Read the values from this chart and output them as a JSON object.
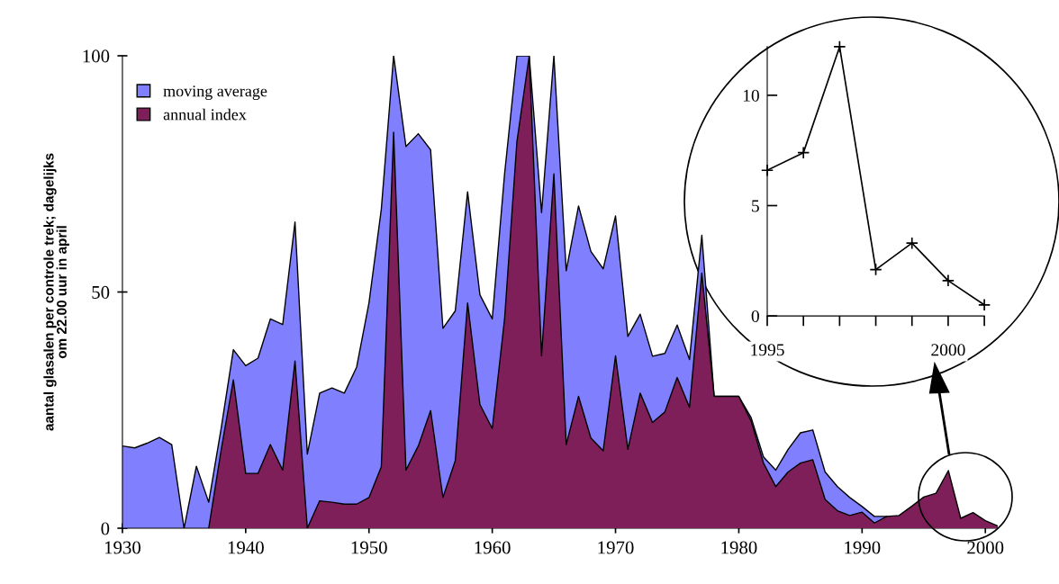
{
  "chart_data": [
    {
      "type": "area",
      "ylabel": "aantal glasalen per controle trek; dagelijks\nom 22.00 uur in april",
      "x": [
        1930,
        1931,
        1932,
        1933,
        1934,
        1935,
        1936,
        1937,
        1938,
        1939,
        1940,
        1941,
        1942,
        1943,
        1944,
        1945,
        1946,
        1947,
        1948,
        1949,
        1950,
        1951,
        1952,
        1953,
        1954,
        1955,
        1956,
        1957,
        1958,
        1959,
        1960,
        1961,
        1962,
        1963,
        1964,
        1965,
        1966,
        1967,
        1968,
        1969,
        1970,
        1971,
        1972,
        1973,
        1974,
        1975,
        1976,
        1977,
        1978,
        1979,
        1980,
        1981,
        1982,
        1983,
        1984,
        1985,
        1986,
        1987,
        1988,
        1989,
        1990,
        1991,
        1992,
        1993,
        1994,
        1995,
        1996,
        1997,
        1998,
        1999,
        2000,
        2001
      ],
      "xlim": [
        1930,
        2001
      ],
      "ylim": [
        0,
        100
      ],
      "xticks": [
        1930,
        1940,
        1950,
        1960,
        1970,
        1980,
        1990,
        2000
      ],
      "yticks": [
        0,
        50,
        100
      ],
      "legend": "top left",
      "series": [
        {
          "name": "moving average",
          "color": "#8080ff",
          "values": [
            17.4,
            17.0,
            18,
            19.2,
            17.7,
            0,
            13.1,
            5.5,
            21,
            37.8,
            34.4,
            36,
            44.3,
            43.1,
            64.8,
            15.7,
            28.6,
            29.7,
            28.6,
            34.1,
            47.7,
            67.5,
            100,
            80.8,
            83.5,
            80.1,
            42.3,
            46,
            71.2,
            49.4,
            44.3,
            75,
            100,
            100,
            66.8,
            100,
            54.5,
            68.2,
            58.6,
            54.9,
            66.1,
            40.6,
            45.3,
            36.4,
            37,
            43,
            35.7,
            62,
            27.9,
            27.9,
            27.9,
            23.4,
            15.1,
            12.3,
            16.7,
            20.2,
            20.8,
            11.9,
            8.8,
            6.5,
            4.6,
            2.5,
            2.5,
            null,
            null,
            null,
            null,
            null,
            null,
            null,
            null,
            null
          ]
        },
        {
          "name": "annual index",
          "color": "#7f1f5a",
          "values": [
            null,
            null,
            null,
            null,
            null,
            null,
            null,
            0,
            16.4,
            31.4,
            11.6,
            11.6,
            17.7,
            12.3,
            35.4,
            0,
            5.8,
            5.5,
            5.1,
            5.1,
            6.5,
            13,
            83.8,
            12.3,
            17.4,
            24.9,
            6.5,
            14.3,
            47.7,
            26.2,
            21.1,
            44.3,
            81.8,
            100,
            36.5,
            75,
            17.7,
            27.9,
            19.1,
            16.4,
            36.5,
            16.7,
            28.6,
            22.4,
            24.6,
            31.9,
            25.6,
            54,
            27.9,
            27.9,
            27.9,
            22.7,
            13.8,
            8.8,
            11.9,
            13.8,
            14.5,
            6.1,
            3.7,
            2.7,
            3.4,
            1.1,
            2.5,
            2.7,
            4.6,
            6.6,
            7.4,
            12.2,
            2.1,
            3.3,
            1.6,
            0.5
          ]
        }
      ]
    },
    {
      "type": "line",
      "x": [
        1995,
        1996,
        1997,
        1998,
        1999,
        2000,
        2001
      ],
      "xlim": [
        1995,
        2001
      ],
      "ylim": [
        0,
        12.2
      ],
      "xticks": [
        1995,
        {
          "value": 1996,
          "label": null
        },
        {
          "value": 1997,
          "label": null
        },
        {
          "value": 1998,
          "label": null
        },
        {
          "value": 1999,
          "label": null
        },
        2000,
        {
          "value": 2001,
          "label": null
        }
      ],
      "yticks": [
        0,
        5,
        10
      ],
      "marker": "cross",
      "series": [
        {
          "color": "#000000",
          "values": [
            6.6,
            7.4,
            12.2,
            2.1,
            3.3,
            1.6,
            0.5
          ]
        }
      ]
    }
  ]
}
